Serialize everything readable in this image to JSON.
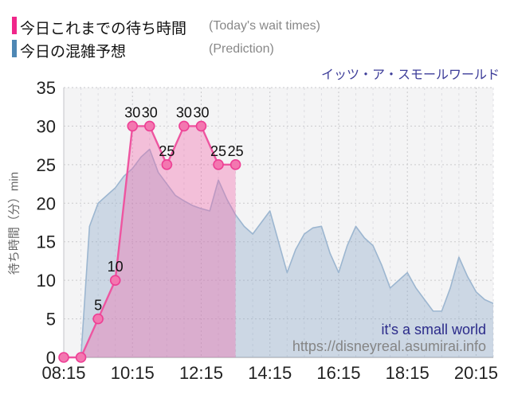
{
  "chart_data": {
    "type": "area",
    "title": "イッツ・ア・スモールワールド",
    "ylabel": "待ち時間（分）min",
    "ylim": [
      0,
      35
    ],
    "y_ticks": [
      0,
      5,
      10,
      15,
      20,
      25,
      30,
      35
    ],
    "x_ticks": [
      "08:15",
      "10:15",
      "12:15",
      "14:15",
      "16:15",
      "18:15",
      "20:15"
    ],
    "x_range": [
      "08:15",
      "20:45"
    ],
    "grid": true,
    "legend_position": "top-left",
    "series": [
      {
        "name": "今日これまでの待ち時間",
        "name_en": "(Today's wait times)",
        "kind": "line+markers+area",
        "swatch_color": "#f0268a",
        "line_color": "#ee55a0",
        "fill_color": "rgba(242,105,171,0.38)",
        "marker_fill": "#f377b0",
        "marker_stroke": "#ed3f94",
        "points": [
          [
            "08:15",
            0
          ],
          [
            "08:45",
            0
          ],
          [
            "09:15",
            5
          ],
          [
            "09:45",
            10
          ],
          [
            "10:15",
            30
          ],
          [
            "10:45",
            30
          ],
          [
            "11:15",
            25
          ],
          [
            "11:45",
            30
          ],
          [
            "12:15",
            30
          ],
          [
            "12:45",
            25
          ],
          [
            "13:15",
            25
          ]
        ],
        "point_labels": [
          "",
          "",
          "5",
          "10",
          "30",
          "30",
          "25",
          "30",
          "30",
          "25",
          "25"
        ]
      },
      {
        "name": "今日の混雑予想",
        "name_en": "(Prediction)",
        "kind": "area",
        "swatch_color": "#4e87b4",
        "line_color": "#9cb6d0",
        "fill_color": "rgba(139,169,199,0.38)",
        "points": [
          [
            "08:45",
            0
          ],
          [
            "09:00",
            17
          ],
          [
            "09:15",
            20
          ],
          [
            "09:30",
            21
          ],
          [
            "09:45",
            22
          ],
          [
            "10:00",
            23.5
          ],
          [
            "10:15",
            24.5
          ],
          [
            "10:30",
            26
          ],
          [
            "10:45",
            27
          ],
          [
            "11:00",
            24
          ],
          [
            "11:15",
            22.5
          ],
          [
            "11:30",
            21
          ],
          [
            "11:45",
            20.3
          ],
          [
            "12:00",
            19.7
          ],
          [
            "12:15",
            19.3
          ],
          [
            "12:30",
            19
          ],
          [
            "12:45",
            23
          ],
          [
            "13:00",
            20.5
          ],
          [
            "13:15",
            18.5
          ],
          [
            "13:30",
            17
          ],
          [
            "13:45",
            16
          ],
          [
            "14:00",
            17.5
          ],
          [
            "14:15",
            19
          ],
          [
            "14:30",
            15
          ],
          [
            "14:45",
            11
          ],
          [
            "15:00",
            14
          ],
          [
            "15:15",
            16
          ],
          [
            "15:30",
            16.8
          ],
          [
            "15:45",
            17
          ],
          [
            "16:00",
            13.5
          ],
          [
            "16:15",
            11
          ],
          [
            "16:30",
            14.5
          ],
          [
            "16:45",
            17
          ],
          [
            "17:00",
            15.5
          ],
          [
            "17:15",
            14.5
          ],
          [
            "17:30",
            12
          ],
          [
            "17:45",
            9
          ],
          [
            "18:00",
            10
          ],
          [
            "18:15",
            11
          ],
          [
            "18:30",
            9
          ],
          [
            "18:45",
            7.5
          ],
          [
            "19:00",
            6
          ],
          [
            "19:15",
            6
          ],
          [
            "19:30",
            9
          ],
          [
            "19:45",
            13
          ],
          [
            "20:00",
            10.5
          ],
          [
            "20:15",
            8.5
          ],
          [
            "20:30",
            7.5
          ],
          [
            "20:45",
            7
          ]
        ]
      }
    ],
    "annotations": {
      "watermark": "it's a small world",
      "source_url": "https://disneyreal.asumirai.info"
    }
  },
  "styles": {
    "plot_bg": "#f4f4f5",
    "major_grid": "#c9c9cc",
    "minor_grid": "#dddde2",
    "axis_line": "#b0b0b3",
    "left_border": "#c4c4c8",
    "axis_text": "#222222",
    "data_label_text": "#111111",
    "title_color": "#3d3d99",
    "watermark_color": "#2b2b8a",
    "url_color": "#858585"
  }
}
